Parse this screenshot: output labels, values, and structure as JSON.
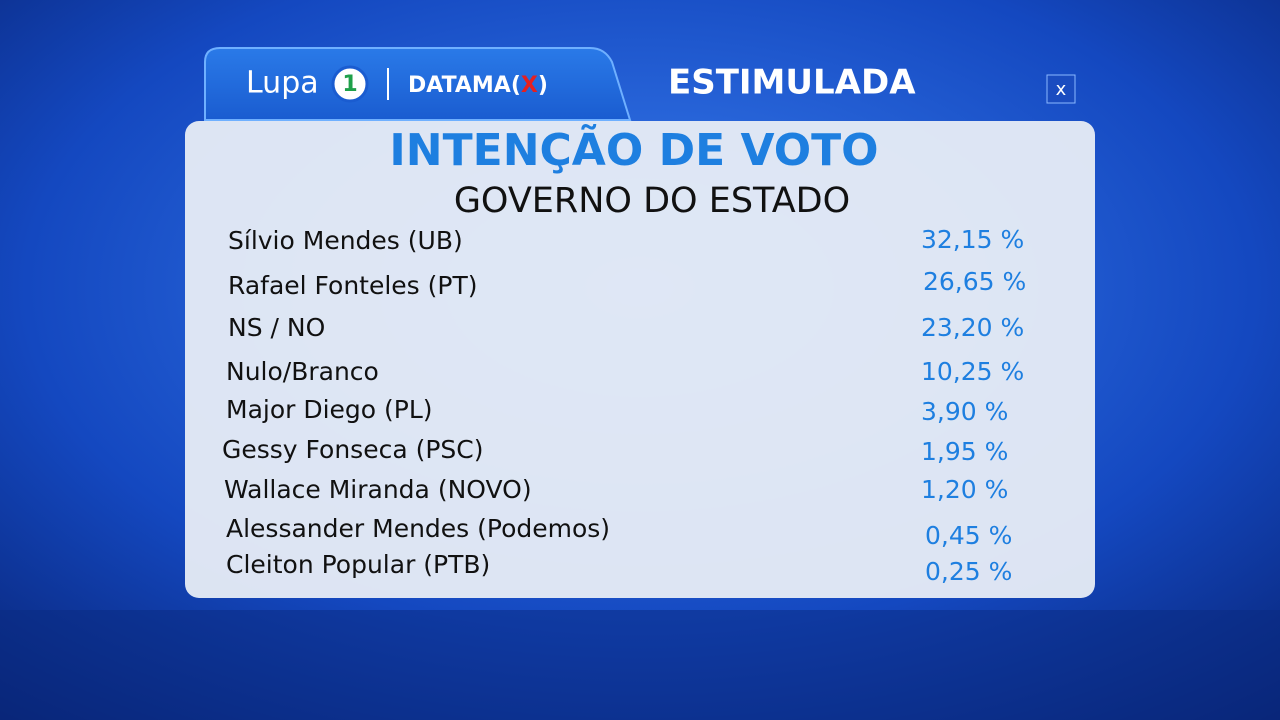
{
  "header": {
    "logo_name": "Lupa",
    "logo_badge": "1",
    "partner": "DATAMA",
    "partner_open": "(",
    "partner_x": "X",
    "partner_close": ")",
    "mode": "ESTIMULADA",
    "close": "x"
  },
  "panel": {
    "title": "INTENÇÃO DE VOTO",
    "subtitle": "GOVERNO DO ESTADO"
  },
  "table": {
    "rows": [
      [
        "Sílvio Mendes (UB)",
        "32,15 %"
      ],
      [
        "Rafael Fonteles (PT)",
        "26,65 %"
      ],
      [
        "NS / NO",
        "23,20 %"
      ],
      [
        "Nulo/Branco",
        "10,25 %"
      ],
      [
        "Major Diego (PL)",
        "3,90 %"
      ],
      [
        "Gessy Fonseca (PSC)",
        "1,95 %"
      ],
      [
        "Wallace Miranda (NOVO)",
        "1,20 %"
      ],
      [
        "Alessander Mendes (Podemos)",
        "0,45 %"
      ],
      [
        "Cleiton Popular (PTB)",
        "0,25 %"
      ]
    ]
  }
}
